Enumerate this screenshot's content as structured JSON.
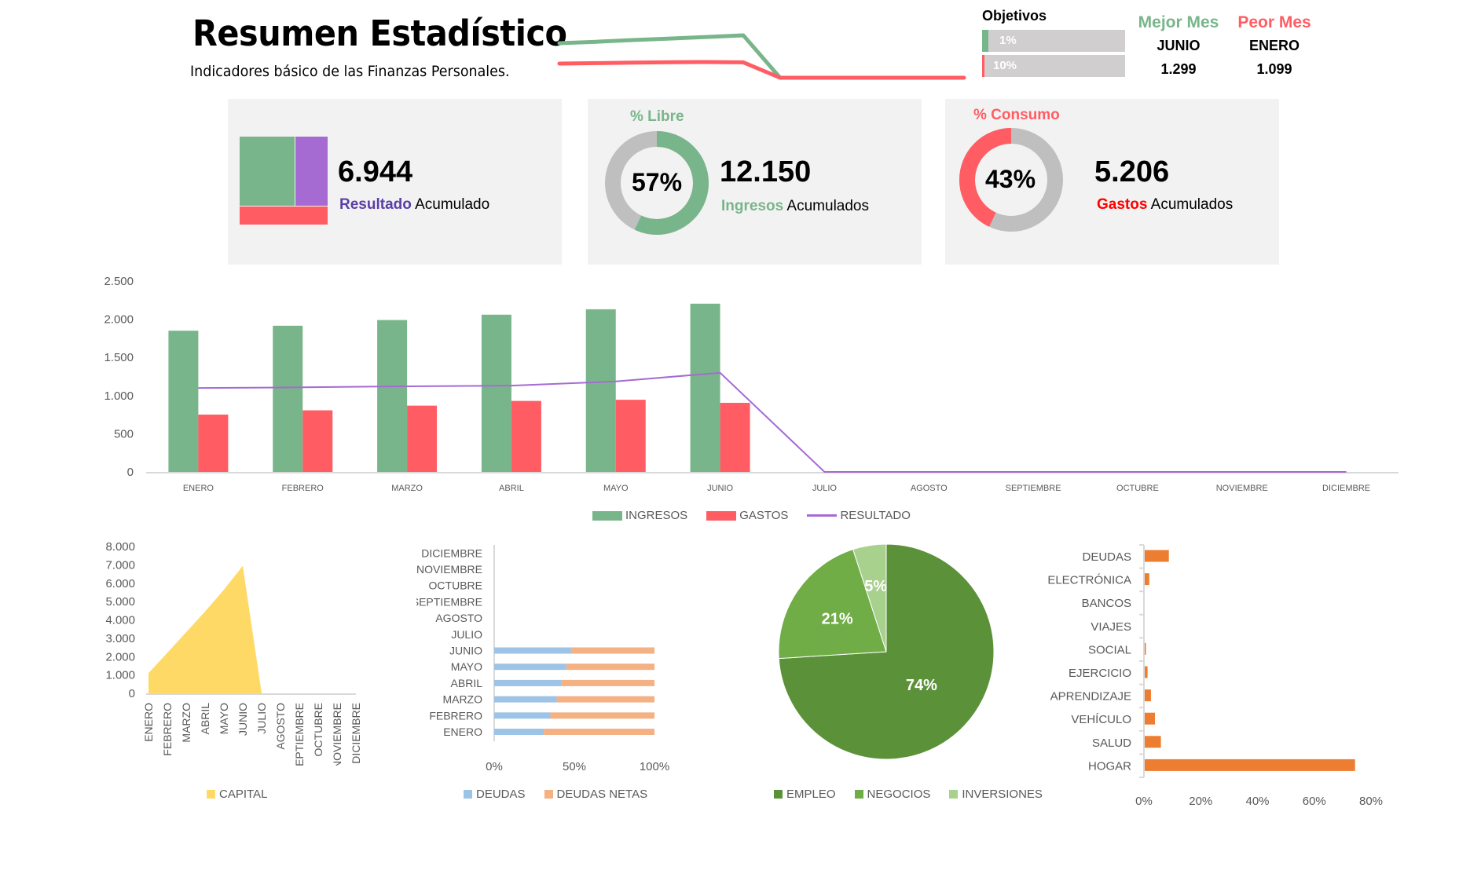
{
  "header": {
    "title": "Resumen Estadístico",
    "subtitle": "Indicadores básico de las Finanzas Personales."
  },
  "sparkline": {
    "ingresos": [
      1850,
      1915,
      1990,
      2060,
      2131,
      2204,
      0,
      0,
      0,
      0,
      0,
      0
    ],
    "gastos": [
      751,
      807,
      868,
      930,
      945,
      905,
      0,
      0,
      0,
      0,
      0,
      0
    ],
    "colors": {
      "ingresos": "#79b58a",
      "gastos": "#ff5d63"
    }
  },
  "objetivos": {
    "label": "Objetivos",
    "items": [
      {
        "value_text": "1%",
        "fraction": 0.01,
        "color": "#79b58a"
      },
      {
        "value_text": "10%",
        "fraction": 0.1,
        "color": "#ff5d63"
      }
    ]
  },
  "mejor_mes": {
    "label": "Mejor Mes",
    "month": "JUNIO",
    "value": "1.299",
    "color": "#79b58a"
  },
  "peor_mes": {
    "label": "Peor Mes",
    "month": "ENERO",
    "value": "1.099",
    "color": "#ff5d63"
  },
  "cards": {
    "resultado": {
      "value": "6.944",
      "label_bold": "Resultado",
      "label_rest": " Acumulado",
      "colors": {
        "ingresos": "#79b58a",
        "resultado": "#a66bd3",
        "gastos": "#ff5d63",
        "label": "#5b3fa6"
      }
    },
    "ingresos": {
      "title": "% Libre",
      "percent_text": "57%",
      "fraction": 0.57,
      "value": "12.150",
      "label_bold": "Ingresos",
      "label_rest": " Acumulados",
      "color": "#79b58a"
    },
    "gastos": {
      "title": "% Consumo",
      "percent_text": "43%",
      "fraction": 0.43,
      "value": "5.206",
      "label_bold": "Gastos",
      "label_rest": " Acumulados",
      "color": "#ff5d63",
      "label_color": "#ff0000"
    }
  },
  "chart_data": [
    {
      "id": "monthly",
      "type": "bar",
      "title": "",
      "categories": [
        "ENERO",
        "FEBRERO",
        "MARZO",
        "ABRIL",
        "MAYO",
        "JUNIO",
        "JULIO",
        "AGOSTO",
        "SEPTIEMBRE",
        "OCTUBRE",
        "NOVIEMBRE",
        "DICIEMBRE"
      ],
      "series": [
        {
          "name": "INGRESOS",
          "kind": "bar",
          "color": "#79b58a",
          "values": [
            1850,
            1915,
            1990,
            2060,
            2131,
            2204,
            0,
            0,
            0,
            0,
            0,
            0
          ]
        },
        {
          "name": "GASTOS",
          "kind": "bar",
          "color": "#ff5d63",
          "values": [
            751,
            807,
            868,
            930,
            945,
            905,
            0,
            0,
            0,
            0,
            0,
            0
          ]
        },
        {
          "name": "RESULTADO",
          "kind": "line",
          "color": "#a66bd3",
          "values": [
            1099,
            1108,
            1122,
            1130,
            1186,
            1299,
            0,
            0,
            0,
            0,
            0,
            0
          ]
        }
      ],
      "ylim": [
        0,
        2500
      ],
      "yticks": [
        0,
        500,
        1000,
        1500,
        2000,
        2500
      ],
      "ytick_labels": [
        "0",
        "500",
        "1.000",
        "1.500",
        "2.000",
        "2.500"
      ],
      "legend": "bottom",
      "grid": false
    },
    {
      "id": "capital",
      "type": "area",
      "categories": [
        "ENERO",
        "FEBRERO",
        "MARZO",
        "ABRIL",
        "MAYO",
        "JUNIO",
        "JULIO",
        "AGOSTO",
        "SEPTIEMBRE",
        "OCTUBRE",
        "NOVIEMBRE",
        "DICIEMBRE"
      ],
      "series": [
        {
          "name": "CAPITAL",
          "color": "#ffd966",
          "values": [
            1099,
            2207,
            3329,
            4459,
            5645,
            6944,
            0,
            0,
            0,
            0,
            0,
            0
          ]
        }
      ],
      "ylim": [
        0,
        8000
      ],
      "yticks": [
        0,
        1000,
        2000,
        3000,
        4000,
        5000,
        6000,
        7000,
        8000
      ],
      "ytick_labels": [
        "0",
        "1.000",
        "2.000",
        "3.000",
        "4.000",
        "5.000",
        "6.000",
        "7.000",
        "8.000"
      ],
      "legend": "bottom"
    },
    {
      "id": "deudas",
      "type": "bar",
      "orientation": "horizontal",
      "stacked": "percent",
      "categories": [
        "ENERO",
        "FEBRERO",
        "MARZO",
        "ABRIL",
        "MAYO",
        "JUNIO",
        "JULIO",
        "AGOSTO",
        "SEPTIEMBRE",
        "OCTUBRE",
        "NOVIEMBRE",
        "DICIEMBRE"
      ],
      "series": [
        {
          "name": "DEUDAS",
          "color": "#9dc3e6",
          "values": [
            31,
            35,
            39,
            42,
            45,
            48,
            0,
            0,
            0,
            0,
            0,
            0
          ]
        },
        {
          "name": "DEUDAS NETAS",
          "color": "#f4b183",
          "values": [
            69,
            65,
            61,
            58,
            55,
            52,
            0,
            0,
            0,
            0,
            0,
            0
          ]
        }
      ],
      "xlim": [
        0,
        100
      ],
      "xticks": [
        0,
        50,
        100
      ],
      "xtick_labels": [
        "0%",
        "50%",
        "100%"
      ],
      "legend": "bottom"
    },
    {
      "id": "fuentes",
      "type": "pie",
      "labels": [
        "EMPLEO",
        "NEGOCIOS",
        "INVERSIONES"
      ],
      "values": [
        74,
        21,
        5
      ],
      "value_labels": [
        "74%",
        "21%",
        "5%"
      ],
      "colors": [
        "#5b9239",
        "#70ad47",
        "#a9d18e"
      ],
      "legend": "bottom"
    },
    {
      "id": "categorias_gasto",
      "type": "bar",
      "orientation": "horizontal",
      "categories": [
        "DEUDAS",
        "ELECTRÓNICA",
        "BANCOS",
        "VIAJES",
        "SOCIAL",
        "EJERCICIO",
        "APRENDIZAJE",
        "VEHÍCULO",
        "SALUD",
        "HOGAR"
      ],
      "values": [
        8.5,
        1.6,
        0,
        0,
        0.4,
        1.0,
        2.2,
        3.6,
        5.7,
        74.1
      ],
      "color": "#ed7d31",
      "xlim": [
        0,
        80
      ],
      "xticks": [
        0,
        20,
        40,
        60,
        80
      ],
      "xtick_labels": [
        "0%",
        "20%",
        "40%",
        "60%",
        "80%"
      ]
    }
  ]
}
